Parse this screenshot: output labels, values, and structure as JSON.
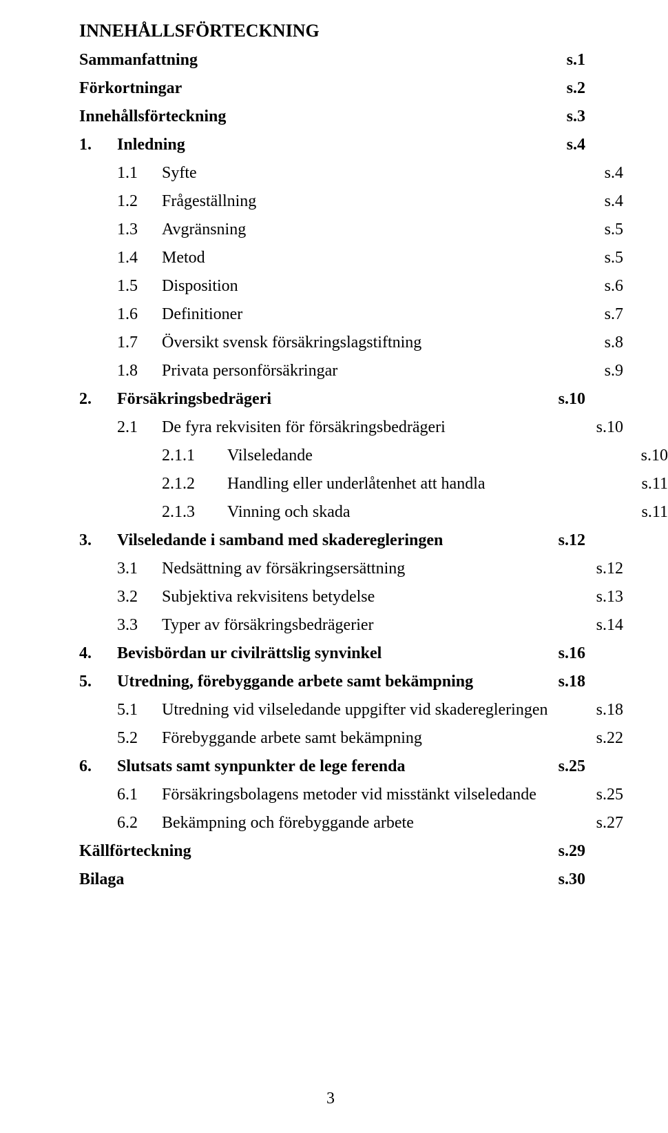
{
  "title": "INNEHÅLLSFÖRTECKNING",
  "page_number": "3",
  "entries": [
    {
      "level": 0,
      "num": "",
      "text": "Sammanfattning",
      "page": "s.1"
    },
    {
      "level": 0,
      "num": "",
      "text": "Förkortningar",
      "page": "s.2"
    },
    {
      "level": 0,
      "num": "",
      "text": "Innehållsförteckning",
      "page": "s.3"
    },
    {
      "level": 1,
      "num": "1.",
      "text": "Inledning",
      "page": "s.4"
    },
    {
      "level": 2,
      "num": "1.1",
      "text": "Syfte",
      "page": "s.4"
    },
    {
      "level": 2,
      "num": "1.2",
      "text": "Frågeställning",
      "page": "s.4"
    },
    {
      "level": 2,
      "num": "1.3",
      "text": "Avgränsning",
      "page": "s.5"
    },
    {
      "level": 2,
      "num": "1.4",
      "text": "Metod",
      "page": "s.5"
    },
    {
      "level": 2,
      "num": "1.5",
      "text": "Disposition",
      "page": "s.6"
    },
    {
      "level": 2,
      "num": "1.6",
      "text": "Definitioner",
      "page": "s.7"
    },
    {
      "level": 2,
      "num": "1.7",
      "text": "Översikt svensk försäkringslagstiftning",
      "page": "s.8"
    },
    {
      "level": 2,
      "num": "1.8",
      "text": "Privata personförsäkringar",
      "page": "s.9"
    },
    {
      "level": 1,
      "num": "2.",
      "text": "Försäkringsbedrägeri",
      "page": "s.10"
    },
    {
      "level": 2,
      "num": "2.1",
      "text": "De fyra rekvisiten för försäkringsbedrägeri",
      "page": "s.10"
    },
    {
      "level": 3,
      "num": "2.1.1",
      "text": "Vilseledande",
      "page": "s.10"
    },
    {
      "level": 3,
      "num": "2.1.2",
      "text": "Handling eller underlåtenhet att handla",
      "page": "s.11"
    },
    {
      "level": 3,
      "num": "2.1.3",
      "text": "Vinning och skada",
      "page": "s.11"
    },
    {
      "level": 1,
      "num": "3.",
      "text": "Vilseledande i samband med skaderegleringen",
      "page": "s.12"
    },
    {
      "level": 2,
      "num": "3.1",
      "text": "Nedsättning av försäkringsersättning",
      "page": "s.12"
    },
    {
      "level": 2,
      "num": "3.2",
      "text": "Subjektiva rekvisitens betydelse",
      "page": "s.13"
    },
    {
      "level": 2,
      "num": "3.3",
      "text": "Typer av försäkringsbedrägerier",
      "page": "s.14"
    },
    {
      "level": 1,
      "num": "4.",
      "text": "Bevisbördan ur civilrättslig synvinkel",
      "page": "s.16"
    },
    {
      "level": 1,
      "num": "5.",
      "text": "Utredning, förebyggande arbete samt bekämpning",
      "page": "s.18"
    },
    {
      "level": 2,
      "num": "5.1",
      "text": "Utredning vid vilseledande uppgifter vid skaderegleringen",
      "page": "s.18"
    },
    {
      "level": 2,
      "num": "5.2",
      "text": "Förebyggande arbete samt bekämpning",
      "page": "s.22"
    },
    {
      "level": 1,
      "num": "6.",
      "text": "Slutsats samt synpunkter de lege ferenda",
      "page": "s.25"
    },
    {
      "level": 2,
      "num": "6.1",
      "text": "Försäkringsbolagens metoder vid misstänkt vilseledande",
      "page": "s.25"
    },
    {
      "level": 2,
      "num": "6.2",
      "text": "Bekämpning och förebyggande arbete",
      "page": "s.27"
    },
    {
      "level": 0,
      "num": "",
      "text": "Källförteckning",
      "page": "s.29"
    },
    {
      "level": 0,
      "num": "",
      "text": "Bilaga",
      "page": "s.30"
    }
  ]
}
